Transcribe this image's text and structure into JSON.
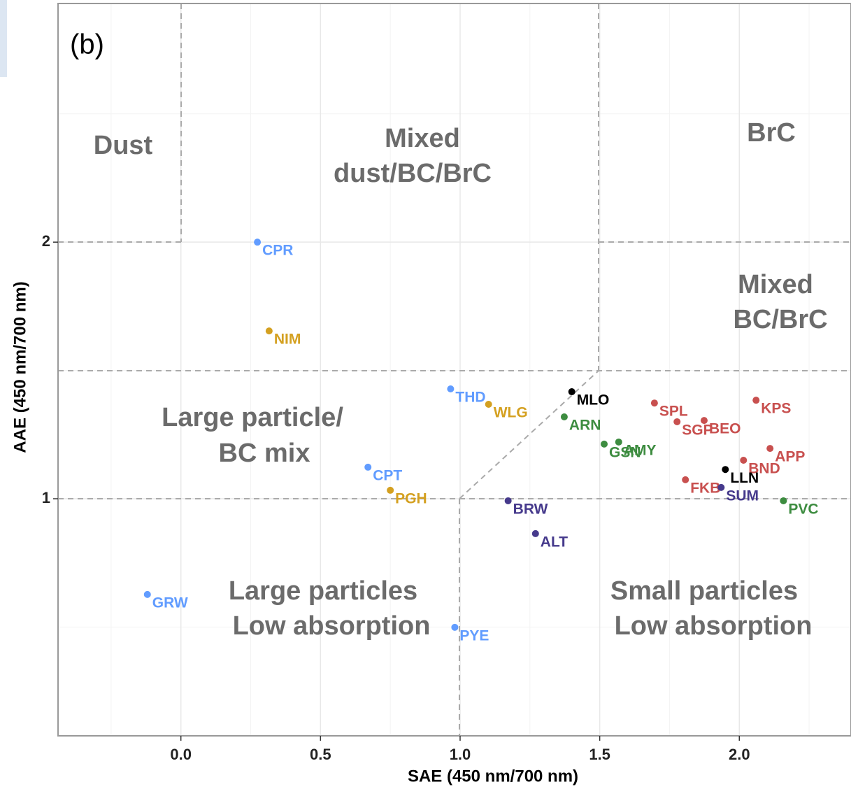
{
  "chart_data": {
    "type": "scatter",
    "panel_label": "(b)",
    "x_label": "SAE (450 nm/700 nm)",
    "y_label": "AAE (450 nm/700 nm)",
    "xlim": [
      -0.44,
      2.4
    ],
    "ylim": [
      0.076,
      2.93
    ],
    "xticks": [
      {
        "value": 0,
        "label": "0.0"
      },
      {
        "value": 0.5,
        "label": "0.5"
      },
      {
        "value": 1,
        "label": "1.0"
      },
      {
        "value": 1.5,
        "label": "1.5"
      },
      {
        "value": 2,
        "label": "2.0"
      }
    ],
    "yticks": [
      1,
      2
    ],
    "x_minor_grid": [
      -0.25,
      0.25,
      0.75,
      1.25,
      1.75,
      2.25
    ],
    "y_minor_grid": [
      0.5,
      1.5,
      2.5
    ],
    "grid": true,
    "annotations": [
      [
        "Dust"
      ],
      [
        "Mixed",
        "dust/BC/BrC"
      ],
      [
        "BrC"
      ],
      [
        "Mixed",
        "BC/BrC"
      ],
      [
        "Large particle/",
        "BC mix"
      ],
      [
        "Large particles",
        "Low absorption"
      ],
      [
        "Small particles",
        "Low absorption"
      ]
    ],
    "points": [
      {
        "label": "CPR",
        "x": 0.274,
        "y": 2.0,
        "color": "#619cff"
      },
      {
        "label": "NIM",
        "x": 0.316,
        "y": 1.654,
        "color": "#d4a020"
      },
      {
        "label": "THD",
        "x": 0.966,
        "y": 1.428,
        "color": "#619cff"
      },
      {
        "label": "WLG",
        "x": 1.102,
        "y": 1.368,
        "color": "#d4a020"
      },
      {
        "label": "MLO",
        "x": 1.4,
        "y": 1.417,
        "color": "#000000"
      },
      {
        "label": "CPT",
        "x": 0.67,
        "y": 1.123,
        "color": "#619cff"
      },
      {
        "label": "PGH",
        "x": 0.75,
        "y": 1.033,
        "color": "#d4a020"
      },
      {
        "label": "BRW",
        "x": 1.172,
        "y": 0.992,
        "color": "#463a8c"
      },
      {
        "label": "ALT",
        "x": 1.27,
        "y": 0.864,
        "color": "#463a8c"
      },
      {
        "label": "ARN",
        "x": 1.373,
        "y": 1.319,
        "color": "#3d8c40"
      },
      {
        "label": "GSN",
        "x": 1.516,
        "y": 1.213,
        "color": "#3d8c40"
      },
      {
        "label": "AMY",
        "x": 1.568,
        "y": 1.221,
        "color": "#3d8c40"
      },
      {
        "label": "SPL",
        "x": 1.696,
        "y": 1.373,
        "color": "#c8504f"
      },
      {
        "label": "SGP",
        "x": 1.777,
        "y": 1.3,
        "color": "#c8504f"
      },
      {
        "label": "BEO",
        "x": 1.874,
        "y": 1.305,
        "color": "#c8504f"
      },
      {
        "label": "KPS",
        "x": 2.06,
        "y": 1.384,
        "color": "#c8504f"
      },
      {
        "label": "APP",
        "x": 2.11,
        "y": 1.196,
        "color": "#c8504f"
      },
      {
        "label": "BND",
        "x": 2.015,
        "y": 1.15,
        "color": "#c8504f"
      },
      {
        "label": "FKB",
        "x": 1.807,
        "y": 1.074,
        "color": "#c8504f"
      },
      {
        "label": "LLN",
        "x": 1.95,
        "y": 1.114,
        "color": "#000000"
      },
      {
        "label": "SUM",
        "x": 1.935,
        "y": 1.044,
        "color": "#463a8c"
      },
      {
        "label": "PVC",
        "x": 2.158,
        "y": 0.992,
        "color": "#3d8c40"
      },
      {
        "label": "GRW",
        "x": -0.12,
        "y": 0.627,
        "color": "#619cff"
      },
      {
        "label": "PYE",
        "x": 0.981,
        "y": 0.499,
        "color": "#619cff"
      }
    ]
  }
}
